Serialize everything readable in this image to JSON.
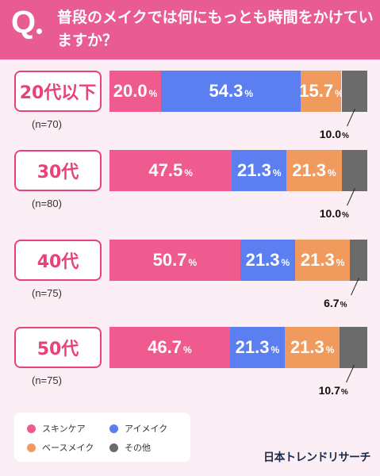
{
  "header": {
    "q_mark": "Q",
    "question": "普段のメイクでは何にもっとも時間をかけていますか？"
  },
  "colors": {
    "skincare": "#ef5b8f",
    "eye": "#5b7ff0",
    "base": "#f09a5e",
    "other": "#6b6b6b"
  },
  "chart_data": {
    "type": "bar",
    "orientation": "horizontal-stacked-100",
    "categories": [
      "20代以下",
      "30代",
      "40代",
      "50代"
    ],
    "sample_sizes": [
      "(n=70)",
      "(n=80)",
      "(n=75)",
      "(n=75)"
    ],
    "series": [
      {
        "name": "スキンケア",
        "values": [
          20.0,
          47.5,
          50.7,
          46.7
        ]
      },
      {
        "name": "アイメイク",
        "values": [
          54.3,
          21.3,
          21.3,
          21.3
        ]
      },
      {
        "name": "ベースメイク",
        "values": [
          15.7,
          21.3,
          21.3,
          21.3
        ]
      },
      {
        "name": "その他",
        "values": [
          10.0,
          10.0,
          6.7,
          10.7
        ]
      }
    ],
    "value_labels": [
      [
        "20.0",
        "54.3",
        "15.7",
        "10.0"
      ],
      [
        "47.5",
        "21.3",
        "21.3",
        "10.0"
      ],
      [
        "50.7",
        "21.3",
        "21.3",
        "6.7"
      ],
      [
        "46.7",
        "21.3",
        "21.3",
        "10.7"
      ]
    ],
    "unit": "%",
    "legend_position": "bottom-left"
  },
  "legend": [
    {
      "label": "スキンケア"
    },
    {
      "label": "アイメイク"
    },
    {
      "label": "ベースメイク"
    },
    {
      "label": "その他"
    }
  ],
  "brand": "日本トレンドリサーチ"
}
